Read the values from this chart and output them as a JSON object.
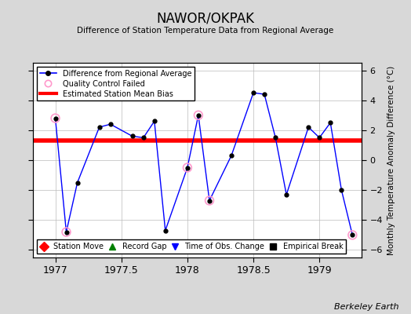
{
  "title": "NAWOR/OKPAK",
  "subtitle": "Difference of Station Temperature Data from Regional Average",
  "ylabel": "Monthly Temperature Anomaly Difference (°C)",
  "xlabel_ticks": [
    1977,
    1977.5,
    1978,
    1978.5,
    1979
  ],
  "ylim": [
    -6.5,
    6.5
  ],
  "xlim": [
    1976.83,
    1979.32
  ],
  "yticks": [
    -6,
    -4,
    -2,
    0,
    2,
    4,
    6
  ],
  "mean_bias": 1.3,
  "x_data": [
    1977.0,
    1977.083,
    1977.167,
    1977.333,
    1977.417,
    1977.583,
    1977.667,
    1977.75,
    1977.833,
    1978.0,
    1978.083,
    1978.167,
    1978.333,
    1978.5,
    1978.583,
    1978.667,
    1978.75,
    1978.917,
    1979.0,
    1979.083,
    1979.167,
    1979.25
  ],
  "y_data": [
    2.8,
    -4.8,
    -1.5,
    2.2,
    2.4,
    1.6,
    1.5,
    2.6,
    -4.7,
    -0.5,
    3.0,
    -2.7,
    0.3,
    4.5,
    4.4,
    1.5,
    -2.3,
    2.2,
    1.5,
    2.5,
    -2.0,
    -5.0
  ],
  "qc_failed_x": [
    1977.0,
    1977.083,
    1978.0,
    1978.083,
    1978.167,
    1979.25
  ],
  "qc_failed_y": [
    2.8,
    -4.8,
    -0.5,
    3.0,
    -2.7,
    -5.0
  ],
  "line_color": "#0000ff",
  "marker_color": "#000000",
  "qc_color": "#ff99cc",
  "bias_color": "#ff0000",
  "background_color": "#d8d8d8",
  "plot_bg_color": "#ffffff",
  "grid_color": "#bbbbbb",
  "watermark": "Berkeley Earth",
  "legend1_items": [
    "Difference from Regional Average",
    "Quality Control Failed",
    "Estimated Station Mean Bias"
  ],
  "legend2_items": [
    "Station Move",
    "Record Gap",
    "Time of Obs. Change",
    "Empirical Break"
  ]
}
